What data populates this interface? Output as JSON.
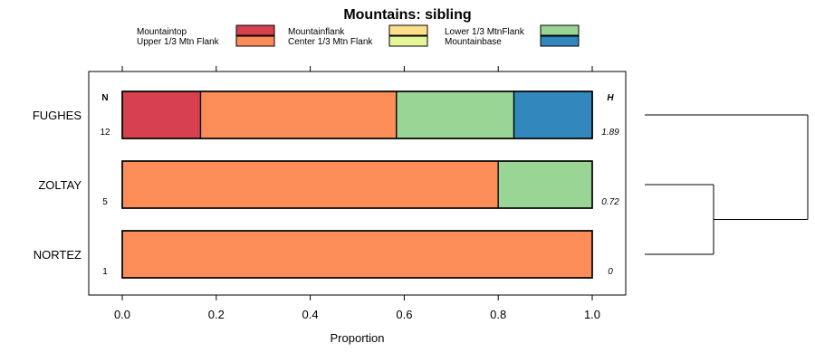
{
  "chart_data": {
    "type": "bar",
    "stacked": true,
    "horizontal": true,
    "title": "Mountains: sibling",
    "xlabel": "Proportion",
    "xlim": [
      0,
      1
    ],
    "x_ticks": [
      "0.0",
      "0.2",
      "0.4",
      "0.6",
      "0.8",
      "1.0"
    ],
    "n_header": "N",
    "h_header": "H",
    "legend": [
      {
        "name": "Mountaintop",
        "color": "#d7404f"
      },
      {
        "name": "Upper 1/3 Mtn Flank",
        "color": "#fc8d59"
      },
      {
        "name": "Mountainflank",
        "color": "#fee08b"
      },
      {
        "name": "Center 1/3 Mtn Flank",
        "color": "#e6f598"
      },
      {
        "name": "Lower 1/3 MtnFlank",
        "color": "#99d594"
      },
      {
        "name": "Mountainbase",
        "color": "#3288bd"
      }
    ],
    "categories": [
      "FUGHES",
      "ZOLTAY",
      "NORTEZ"
    ],
    "n_values": [
      "12",
      "5",
      "1"
    ],
    "h_values": [
      "1.89",
      "0.72",
      "0"
    ],
    "series": [
      {
        "name": "Mountaintop",
        "values": [
          0.1667,
          0,
          0
        ]
      },
      {
        "name": "Upper 1/3 Mtn Flank",
        "values": [
          0.4167,
          0.8,
          1.0
        ]
      },
      {
        "name": "Mountainflank",
        "values": [
          0,
          0,
          0
        ]
      },
      {
        "name": "Center 1/3 Mtn Flank",
        "values": [
          0,
          0,
          0
        ]
      },
      {
        "name": "Lower 1/3 MtnFlank",
        "values": [
          0.25,
          0.2,
          0
        ]
      },
      {
        "name": "Mountainbase",
        "values": [
          0.1667,
          0,
          0
        ]
      }
    ],
    "dendrogram": {
      "type": "hierarchical-clustering",
      "merges": [
        [
          "ZOLTAY",
          "NORTEZ"
        ],
        [
          "FUGHES",
          "ZOLTAY+NORTEZ"
        ]
      ]
    }
  }
}
